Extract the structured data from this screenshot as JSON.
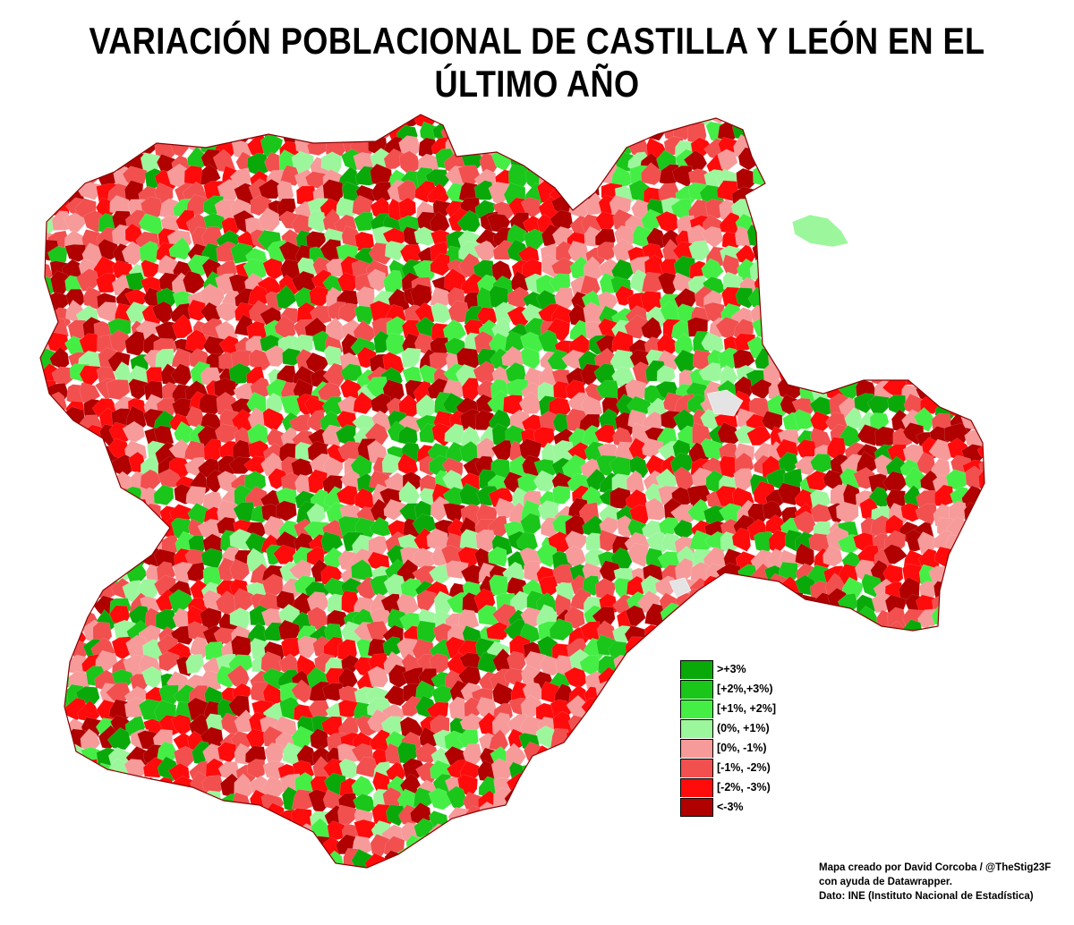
{
  "title": "VARIACIÓN POBLACIONAL DE CASTILLA Y LEÓN EN EL ÚLTIMO AÑO",
  "map": {
    "region": "Castilla y León",
    "unit": "municipalities",
    "no_data_color": "#e4e4e4",
    "border_color": "#ffffff"
  },
  "legend": {
    "items": [
      {
        "label": ">+3%",
        "color": "#0aa90a"
      },
      {
        "label": "[+2%,+3%)",
        "color": "#19c619"
      },
      {
        "label": "[+1%, +2%]",
        "color": "#45ee45"
      },
      {
        "label": "(0%, +1%)",
        "color": "#9cf79c"
      },
      {
        "label": "[0%, -1%)",
        "color": "#f79a9a"
      },
      {
        "label": "[-1%, -2%)",
        "color": "#f24f4f"
      },
      {
        "label": "[-2%, -3%)",
        "color": "#ff0b0b"
      },
      {
        "label": "<-3%",
        "color": "#b00000"
      }
    ]
  },
  "credits": {
    "line1": "Mapa creado por David Corcoba / @TheStig23F",
    "line2": "con ayuda de Datawrapper.",
    "line3": "Dato: INE (Instituto Nacional de Estadística)"
  }
}
